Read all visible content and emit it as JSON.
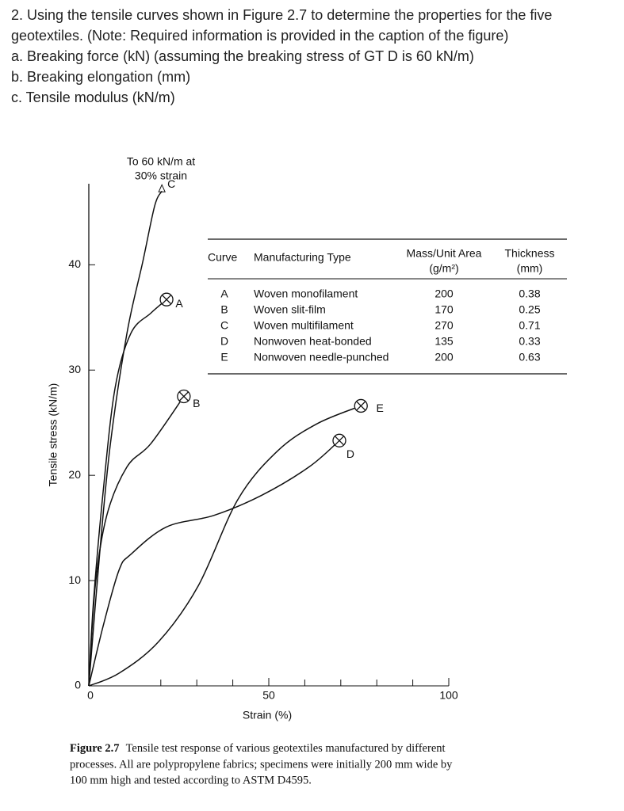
{
  "question": {
    "stem": [
      "2. Using the tensile curves shown in Figure 2.7 to determine the properties for the five",
      "geotextiles. (Note: Required information is provided in the caption of the figure)"
    ],
    "items": [
      "a. Breaking force (kN) (assuming the breaking stress of GT D is 60 kN/m)",
      "b. Breaking elongation (mm)",
      "c. Tensile modulus (kN/m)"
    ]
  },
  "chart_data": {
    "type": "line",
    "x_label": "Strain (%)",
    "y_label": "Tensile stress (kN/m)",
    "xlim": [
      0,
      100
    ],
    "ylim": [
      0,
      47.7
    ],
    "xticks": [
      0,
      50,
      100
    ],
    "minor_xticks": [
      20,
      30,
      40,
      60,
      70,
      80,
      90
    ],
    "yticks": [
      0,
      10,
      20,
      30,
      40
    ],
    "annotation": [
      "To 60 kN/m at",
      "30% strain"
    ],
    "series": [
      {
        "name": "A",
        "color": "#111111",
        "x": [
          0,
          1.3,
          4,
          7.3,
          11.7,
          17.2,
          21.6
        ],
        "values": [
          0,
          8,
          18.5,
          28.3,
          33.5,
          35.4,
          36.7
        ]
      },
      {
        "name": "B",
        "color": "#111111",
        "x": [
          0,
          1.8,
          5,
          10.6,
          17.2,
          26.4
        ],
        "values": [
          0,
          9.5,
          16.2,
          20.8,
          23,
          27.5
        ]
      },
      {
        "name": "C",
        "color": "#111111",
        "x": [
          0,
          3,
          6,
          10.6,
          15,
          18.3,
          20.3
        ],
        "values": [
          0,
          12.5,
          23,
          33.5,
          40.3,
          45.6,
          47
        ]
      },
      {
        "name": "D",
        "color": "#111111",
        "x": [
          0,
          4,
          8.4,
          11.7,
          21.6,
          34.8,
          48,
          61.2,
          69.6
        ],
        "values": [
          0,
          5.7,
          11,
          12.5,
          15.1,
          16.2,
          18.1,
          20.8,
          23.3
        ]
      },
      {
        "name": "E",
        "color": "#111111",
        "x": [
          0,
          8.4,
          19.4,
          30.4,
          41.4,
          52.4,
          63.4,
          75.6
        ],
        "values": [
          0,
          1.2,
          4.2,
          9.5,
          17.7,
          22.3,
          24.9,
          26.6
        ]
      }
    ]
  },
  "table": {
    "headers": [
      [
        "Curve"
      ],
      [
        "Manufacturing Type"
      ],
      [
        "Mass/Unit Area",
        "(g/m²)"
      ],
      [
        "Thickness",
        "(mm)"
      ]
    ],
    "rows": [
      [
        "A",
        "Woven monofilament",
        200,
        0.38
      ],
      [
        "B",
        "Woven slit-film",
        170,
        0.25
      ],
      [
        "C",
        "Woven multifilament",
        270,
        0.71
      ],
      [
        "D",
        "Nonwoven heat-bonded",
        135,
        0.33
      ],
      [
        "E",
        "Nonwoven needle-punched",
        200,
        0.63
      ]
    ]
  },
  "caption": {
    "label": "Figure 2.7",
    "lines": [
      "Tensile test response of various geotextiles manufactured by different",
      "processes. All are polypropylene fabrics; specimens were initially 200 mm wide by",
      "100 mm high and tested according to ASTM D4595."
    ]
  }
}
